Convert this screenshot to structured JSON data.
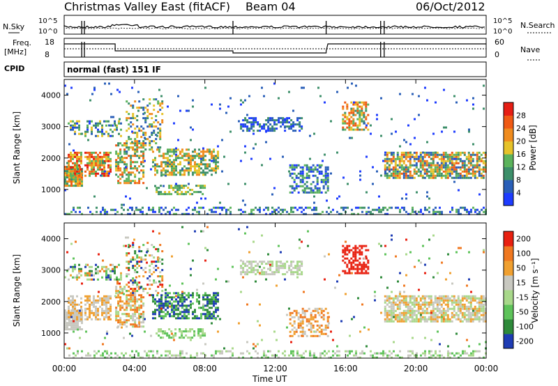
{
  "header": {
    "title": "Christmas Valley East (fitACF)",
    "beam": "Beam 04",
    "date": "06/Oct/2012"
  },
  "top_panels": {
    "nsky_label": "N.Sky",
    "nsearch_label": "N.Search",
    "noise_ticks_left": [
      "10^5",
      "10^0"
    ],
    "noise_ticks_right": [
      "10^5",
      "10^0"
    ],
    "freq_label": "Freq.",
    "freq_unit": "[MHz]",
    "freq_ticks": [
      "18",
      "8"
    ],
    "nave_label": "Nave",
    "nave_ticks": [
      "60",
      "0"
    ],
    "cpid_label": "CPID",
    "cpid_text": "normal (fast) 151 IF"
  },
  "chart_data": [
    {
      "type": "heatmap",
      "name": "power",
      "ylabel": "Slant Range [km]",
      "y_ticks": [
        "1000",
        "2000",
        "3000",
        "4000"
      ],
      "y_values": [
        1000,
        2000,
        3000,
        4000
      ],
      "ylim": [
        200,
        4500
      ],
      "colorbar_label": "Power [dB]",
      "colorbar_ticks": [
        "4",
        "8",
        "12",
        "16",
        "20",
        "24",
        "28"
      ],
      "colors": [
        "#1e3cff",
        "#2a5fb8",
        "#3d8f6a",
        "#5cb35c",
        "#e6c229",
        "#f08c1e",
        "#f05a14",
        "#e61e14"
      ]
    },
    {
      "type": "heatmap",
      "name": "velocity",
      "ylabel": "Slant Range [km]",
      "y_ticks": [
        "1000",
        "2000",
        "3000",
        "4000"
      ],
      "y_values": [
        1000,
        2000,
        3000,
        4000
      ],
      "ylim": [
        200,
        4500
      ],
      "colorbar_label": "Velocity [m s⁻¹]",
      "colorbar_ticks": [
        "200",
        "100",
        "50",
        "15",
        "-15",
        "-50",
        "-100",
        "-200"
      ],
      "colors": [
        "#1e3cb4",
        "#2e8a3a",
        "#5ec35a",
        "#a8d88a",
        "#c8c8c0",
        "#f0a030",
        "#f07820",
        "#e82010"
      ]
    }
  ],
  "x_axis": {
    "label": "Time UT",
    "ticks": [
      "00:00",
      "04:00",
      "08:00",
      "12:00",
      "16:00",
      "20:00",
      "00:00"
    ],
    "hours": [
      0,
      4,
      8,
      12,
      16,
      20,
      24
    ]
  }
}
